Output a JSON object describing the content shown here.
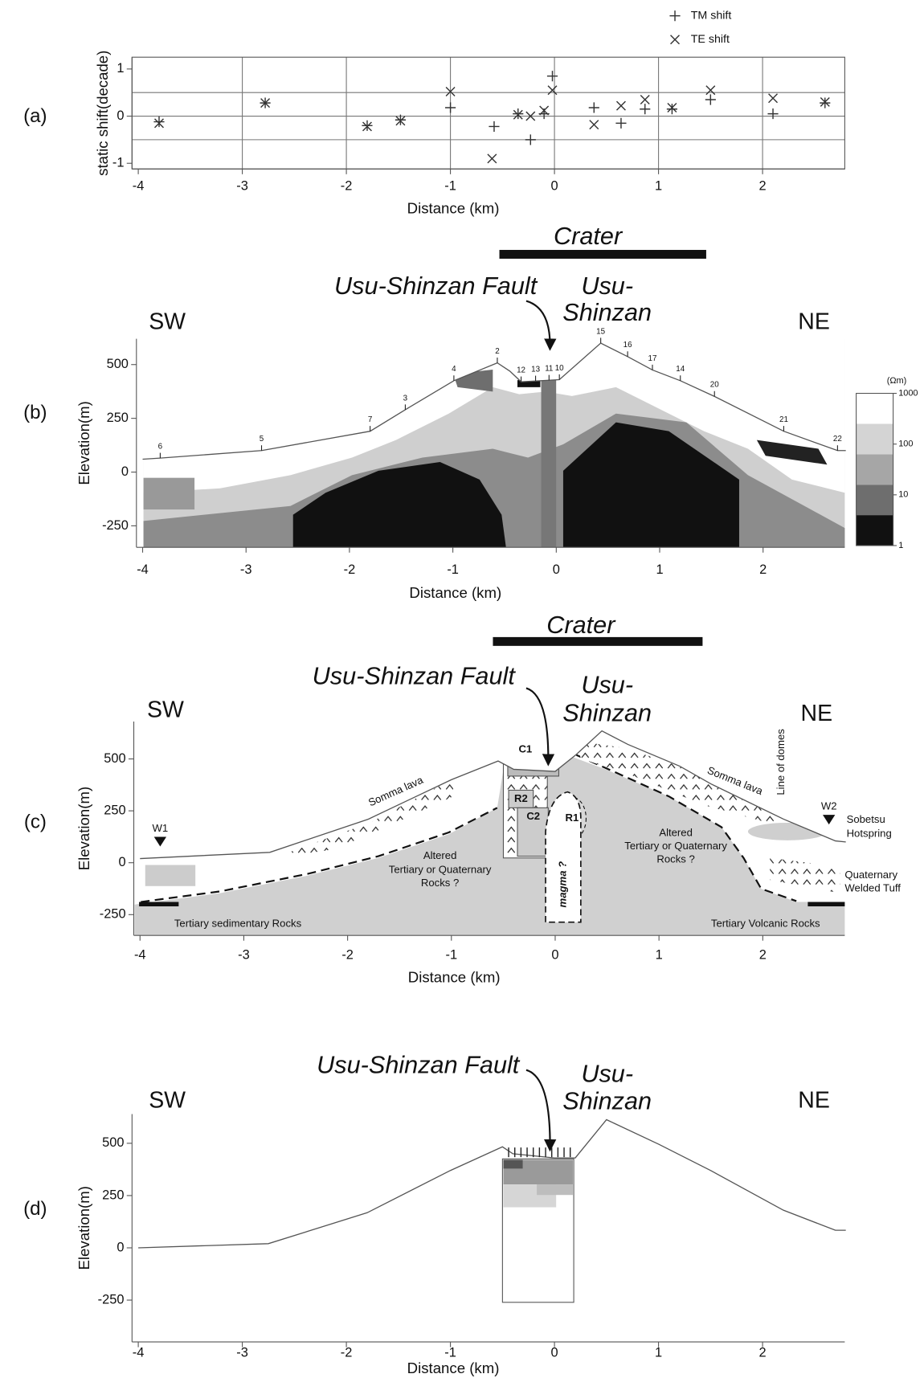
{
  "chart_data": [
    {
      "type": "scatter",
      "label": "(a)",
      "xlabel": "Distance (km)",
      "ylabel": "static shift(decade)",
      "xlim": [
        -4.06,
        2.79
      ],
      "ylim": [
        -1.12,
        1.25
      ],
      "xticks": [
        -4,
        -3,
        -2,
        -1,
        0,
        1,
        2
      ],
      "yticks": [
        -1,
        0,
        1
      ],
      "grid": true,
      "xgrid": [
        -3,
        -2,
        -1,
        0,
        1,
        2
      ],
      "ygrid": [
        -0.5,
        0,
        0.5
      ],
      "legend": "top-right",
      "series": [
        {
          "name": "TM shift",
          "marker": "+",
          "color": "#333333",
          "x": [
            -3.8,
            -2.78,
            -1.8,
            -1.48,
            -1.0,
            -0.58,
            -0.35,
            -0.23,
            -0.1,
            -0.02,
            0.38,
            0.64,
            0.87,
            1.13,
            1.5,
            2.1,
            2.6
          ],
          "values": [
            -0.12,
            0.28,
            -0.2,
            -0.08,
            0.18,
            -0.22,
            0.05,
            -0.5,
            0.05,
            0.85,
            0.18,
            -0.15,
            0.15,
            0.15,
            0.35,
            0.05,
            0.28
          ]
        },
        {
          "name": "TE shift",
          "marker": "x",
          "color": "#333333",
          "x": [
            -3.8,
            -2.78,
            -1.8,
            -1.48,
            -1.0,
            -0.6,
            -0.35,
            -0.23,
            -0.1,
            -0.02,
            0.38,
            0.64,
            0.87,
            1.13,
            1.5,
            2.1,
            2.6
          ],
          "values": [
            -0.15,
            0.28,
            -0.22,
            -0.1,
            0.52,
            -0.9,
            0.03,
            0.0,
            0.12,
            0.55,
            -0.18,
            0.22,
            0.35,
            0.18,
            0.55,
            0.38,
            0.3
          ]
        }
      ]
    },
    {
      "type": "section",
      "label": "(b)",
      "crater": "Crater",
      "crater_extent": [
        -0.55,
        1.45
      ],
      "fault": "Usu-Shinzan Fault",
      "peak": [
        "Usu-",
        "Shinzan"
      ],
      "left": "SW",
      "right": "NE",
      "xlabel": "Distance (km)",
      "ylabel": "Elevation(m)",
      "xlim": [
        -4.06,
        2.79
      ],
      "ylim": [
        -350,
        620
      ],
      "xticks": [
        -4,
        -3,
        -2,
        -1,
        0,
        1,
        2
      ],
      "yticks": [
        -250,
        0,
        250,
        500
      ],
      "profile": {
        "x": [
          -4.0,
          -3.83,
          -2.85,
          -1.8,
          -1.46,
          -0.99,
          -0.57,
          -0.45,
          -0.34,
          0.03,
          0.43,
          0.69,
          0.93,
          1.2,
          1.53,
          2.2,
          2.72,
          2.8
        ],
        "elevation": [
          60,
          65,
          100,
          190,
          290,
          425,
          508,
          470,
          420,
          430,
          600,
          537,
          475,
          425,
          352,
          190,
          100,
          100
        ]
      },
      "stations": {
        "names": [
          "6",
          "5",
          "7",
          "3",
          "4",
          "2",
          "12",
          "13",
          "11",
          "10",
          "15",
          "16",
          "17",
          "14",
          "20",
          "21",
          "22"
        ],
        "x": [
          -3.83,
          -2.85,
          -1.8,
          -1.46,
          -0.99,
          -0.57,
          -0.34,
          -0.2,
          -0.07,
          0.03,
          0.43,
          0.69,
          0.93,
          1.2,
          1.53,
          2.2,
          2.72
        ]
      },
      "colorbar": {
        "unit": "(Ωm)",
        "scale": "log",
        "lim": [
          1,
          1000
        ],
        "ticks": [
          1,
          10,
          100,
          1000
        ],
        "colors": [
          "#111111",
          "#6e6e6e",
          "#a6a6a6",
          "#d4d4d4",
          "#ffffff"
        ]
      }
    },
    {
      "type": "section",
      "label": "(c)",
      "crater": "Crater",
      "crater_extent": [
        -0.6,
        1.42
      ],
      "fault": "Usu-Shinzan Fault",
      "peak": [
        "Usu-",
        "Shinzan"
      ],
      "left": "SW",
      "right": "NE",
      "xlabel": "Distance (km)",
      "ylabel": "Elevation(m)",
      "xlim": [
        -4.06,
        2.79
      ],
      "ylim": [
        -350,
        680
      ],
      "xticks": [
        -4,
        -3,
        -2,
        -1,
        0,
        1,
        2
      ],
      "yticks": [
        -250,
        0,
        250,
        500
      ],
      "profile": {
        "x": [
          -4.0,
          -2.75,
          -1.8,
          -1.0,
          -0.55,
          -0.4,
          0.0,
          0.2,
          0.45,
          0.7,
          1.2,
          1.5,
          2.2,
          2.7,
          2.8
        ],
        "elevation": [
          20,
          50,
          210,
          400,
          490,
          450,
          440,
          520,
          635,
          570,
          465,
          380,
          210,
          105,
          100
        ]
      },
      "annotations": [
        "C1",
        "R2",
        "C2",
        "R1",
        "W1",
        "W2",
        "Somma lava",
        "Somma lava",
        "Line of domes",
        "Sobetsu",
        "Hotspring",
        "Altered",
        "Tertiary or Quaternary",
        "Rocks ?",
        "Altered",
        "Tertiary or Quaternary",
        "Rocks ?",
        "magma ?",
        "Quaternary",
        "Welded Tuff",
        "Tertiary sedimentary Rocks",
        "Tertiary Volcanic Rocks"
      ]
    },
    {
      "type": "section",
      "label": "(d)",
      "fault": "Usu-Shinzan Fault",
      "peak": [
        "Usu-",
        "Shinzan"
      ],
      "left": "SW",
      "right": "NE",
      "xlabel": "Distance (km)",
      "ylabel": "Elevation(m)",
      "xlim": [
        -4.06,
        2.79
      ],
      "ylim": [
        -450,
        640
      ],
      "xticks": [
        -4,
        -3,
        -2,
        -1,
        0,
        1,
        2
      ],
      "yticks": [
        -250,
        0,
        250,
        500
      ],
      "profile": {
        "x": [
          -4.0,
          -2.75,
          -1.8,
          -1.0,
          -0.5,
          -0.4,
          0.0,
          0.2,
          0.5,
          1.0,
          1.5,
          2.2,
          2.7,
          2.8
        ],
        "elevation": [
          0,
          20,
          168,
          370,
          483,
          450,
          430,
          430,
          613,
          496,
          370,
          180,
          84,
          84
        ]
      }
    }
  ]
}
